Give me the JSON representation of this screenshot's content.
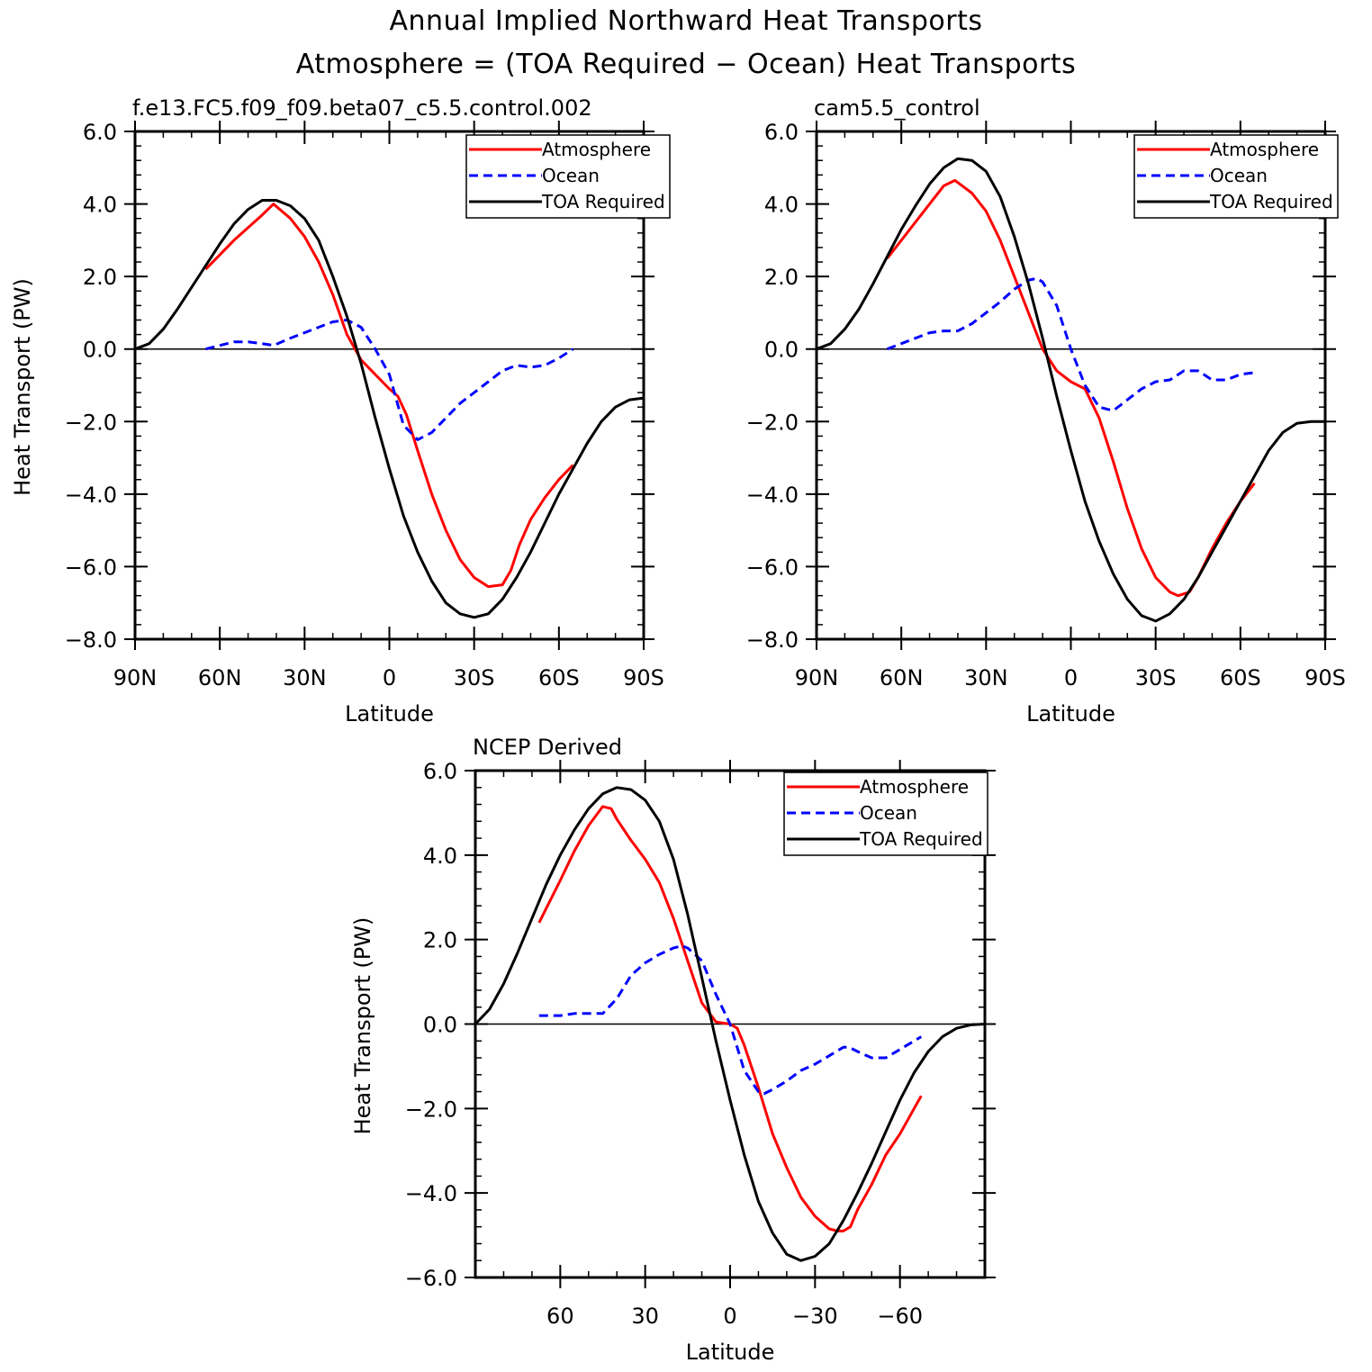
{
  "title": "Annual Implied Northward Heat Transports",
  "subtitle": "Atmosphere = (TOA Required − Ocean) Heat Transports",
  "colors": {
    "atmosphere": "#ff0000",
    "ocean": "#0000ff",
    "toa": "#000000"
  },
  "chart_data": [
    {
      "type": "line",
      "title": "f.e13.FC5.f09_f09.beta07_c5.5.control.002",
      "xlabel": "Latitude",
      "ylabel": "Heat Transport (PW)",
      "xlim": [
        90,
        -90
      ],
      "ylim": [
        -8,
        6
      ],
      "x_ticks": [
        90,
        60,
        30,
        0,
        -30,
        -60,
        -90
      ],
      "x_tick_labels": [
        "90N",
        "60N",
        "30N",
        "0",
        "30S",
        "60S",
        "90S"
      ],
      "y_ticks": [
        6,
        4,
        2,
        0,
        -2,
        -4,
        -6,
        -8
      ],
      "y_tick_labels": [
        "6.0",
        "4.0",
        "2.0",
        "0.0",
        "−2.0",
        "−4.0",
        "−6.0",
        "−8.0"
      ],
      "legend_position": "top-right",
      "grid": false,
      "series": [
        {
          "name": "Atmosphere",
          "style": "solid",
          "color": "#ff0000",
          "x": [
            65,
            55,
            45,
            41,
            35,
            30,
            25,
            20,
            15,
            10,
            5,
            0,
            -3,
            -6,
            -10,
            -15,
            -20,
            -25,
            -30,
            -35,
            -40,
            -43,
            -46,
            -50,
            -55,
            -60,
            -65
          ],
          "y": [
            2.2,
            3.0,
            3.7,
            4.0,
            3.6,
            3.1,
            2.4,
            1.5,
            0.4,
            -0.3,
            -0.7,
            -1.1,
            -1.3,
            -1.8,
            -2.8,
            -4.0,
            -5.0,
            -5.8,
            -6.3,
            -6.55,
            -6.5,
            -6.1,
            -5.4,
            -4.7,
            -4.1,
            -3.6,
            -3.2
          ]
        },
        {
          "name": "Ocean",
          "style": "dashed",
          "color": "#0000ff",
          "x": [
            65,
            60,
            55,
            50,
            45,
            41,
            35,
            30,
            25,
            20,
            15,
            10,
            5,
            0,
            -5,
            -10,
            -15,
            -20,
            -25,
            -30,
            -35,
            -40,
            -45,
            -50,
            -55,
            -60,
            -65
          ],
          "y": [
            0.0,
            0.1,
            0.2,
            0.2,
            0.15,
            0.1,
            0.3,
            0.45,
            0.6,
            0.75,
            0.8,
            0.6,
            0.0,
            -0.7,
            -2.1,
            -2.5,
            -2.3,
            -1.9,
            -1.5,
            -1.2,
            -0.9,
            -0.6,
            -0.45,
            -0.5,
            -0.45,
            -0.25,
            0.0
          ]
        },
        {
          "name": "TOA Required",
          "style": "solid",
          "color": "#000000",
          "x": [
            90,
            85,
            80,
            75,
            70,
            65,
            60,
            55,
            50,
            45,
            40,
            35,
            30,
            25,
            20,
            15,
            10,
            5,
            0,
            -5,
            -10,
            -15,
            -20,
            -25,
            -30,
            -35,
            -40,
            -45,
            -50,
            -55,
            -60,
            -65,
            -70,
            -75,
            -80,
            -85,
            -90
          ],
          "y": [
            0.0,
            0.15,
            0.55,
            1.1,
            1.7,
            2.3,
            2.9,
            3.45,
            3.85,
            4.1,
            4.1,
            3.95,
            3.6,
            3.0,
            2.0,
            0.9,
            -0.4,
            -1.9,
            -3.3,
            -4.6,
            -5.6,
            -6.4,
            -7.0,
            -7.3,
            -7.4,
            -7.3,
            -6.9,
            -6.3,
            -5.6,
            -4.8,
            -4.0,
            -3.3,
            -2.6,
            -2.0,
            -1.6,
            -1.4,
            -1.35
          ]
        }
      ]
    },
    {
      "type": "line",
      "title": "cam5.5_control",
      "xlabel": "Latitude",
      "ylabel": "",
      "xlim": [
        90,
        -90
      ],
      "ylim": [
        -8,
        6
      ],
      "x_ticks": [
        90,
        60,
        30,
        0,
        -30,
        -60,
        -90
      ],
      "x_tick_labels": [
        "90N",
        "60N",
        "30N",
        "0",
        "30S",
        "60S",
        "90S"
      ],
      "y_ticks": [
        6,
        4,
        2,
        0,
        -2,
        -4,
        -6,
        -8
      ],
      "y_tick_labels": [
        "6.0",
        "4.0",
        "2.0",
        "0.0",
        "−2.0",
        "−4.0",
        "−6.0",
        "−8.0"
      ],
      "legend_position": "top-right",
      "grid": false,
      "series": [
        {
          "name": "Atmosphere",
          "style": "solid",
          "color": "#ff0000",
          "x": [
            65,
            60,
            55,
            50,
            45,
            41,
            35,
            30,
            25,
            20,
            15,
            10,
            5,
            0,
            -5,
            -10,
            -15,
            -20,
            -25,
            -30,
            -35,
            -38,
            -42,
            -45,
            -50,
            -55,
            -60,
            -65
          ],
          "y": [
            2.5,
            3.0,
            3.5,
            4.0,
            4.5,
            4.65,
            4.3,
            3.8,
            3.0,
            2.0,
            1.0,
            0.0,
            -0.6,
            -0.9,
            -1.1,
            -1.9,
            -3.1,
            -4.4,
            -5.5,
            -6.3,
            -6.7,
            -6.8,
            -6.7,
            -6.3,
            -5.5,
            -4.8,
            -4.2,
            -3.7
          ]
        },
        {
          "name": "Ocean",
          "style": "dashed",
          "color": "#0000ff",
          "x": [
            65,
            60,
            55,
            50,
            45,
            40,
            35,
            30,
            25,
            20,
            15,
            12,
            10,
            5,
            0,
            -5,
            -10,
            -15,
            -20,
            -25,
            -30,
            -35,
            -40,
            -45,
            -50,
            -55,
            -60,
            -65
          ],
          "y": [
            0.0,
            0.15,
            0.3,
            0.45,
            0.5,
            0.5,
            0.7,
            1.0,
            1.3,
            1.65,
            1.9,
            1.95,
            1.85,
            1.2,
            0.0,
            -1.0,
            -1.6,
            -1.7,
            -1.4,
            -1.1,
            -0.9,
            -0.85,
            -0.6,
            -0.6,
            -0.85,
            -0.85,
            -0.7,
            -0.65
          ]
        },
        {
          "name": "TOA Required",
          "style": "solid",
          "color": "#000000",
          "x": [
            90,
            85,
            80,
            75,
            70,
            65,
            60,
            55,
            50,
            45,
            40,
            35,
            30,
            25,
            20,
            15,
            10,
            5,
            0,
            -5,
            -10,
            -15,
            -20,
            -25,
            -30,
            -35,
            -40,
            -45,
            -50,
            -55,
            -60,
            -65,
            -70,
            -75,
            -80,
            -85,
            -90
          ],
          "y": [
            0.0,
            0.15,
            0.55,
            1.1,
            1.8,
            2.55,
            3.3,
            3.95,
            4.55,
            5.0,
            5.25,
            5.2,
            4.9,
            4.2,
            3.1,
            1.8,
            0.3,
            -1.3,
            -2.8,
            -4.2,
            -5.3,
            -6.2,
            -6.9,
            -7.35,
            -7.5,
            -7.3,
            -6.9,
            -6.3,
            -5.6,
            -4.9,
            -4.2,
            -3.5,
            -2.8,
            -2.3,
            -2.05,
            -2.0,
            -2.0
          ]
        }
      ]
    },
    {
      "type": "line",
      "title": "NCEP Derived",
      "xlabel": "Latitude",
      "ylabel": "Heat Transport (PW)",
      "xlim": [
        90,
        -90
      ],
      "ylim": [
        -6,
        6
      ],
      "x_ticks": [
        60,
        30,
        0,
        -30,
        -60
      ],
      "x_tick_labels": [
        "60",
        "30",
        "0",
        "−30",
        "−60"
      ],
      "y_ticks": [
        6,
        4,
        2,
        0,
        -2,
        -4,
        -6
      ],
      "y_tick_labels": [
        "6.0",
        "4.0",
        "2.0",
        "0.0",
        "−2.0",
        "−4.0",
        "−6.0"
      ],
      "legend_position": "top-right",
      "grid": false,
      "series": [
        {
          "name": "Atmosphere",
          "style": "solid",
          "color": "#ff0000",
          "x": [
            67.5,
            60,
            55,
            50,
            45,
            42,
            40,
            35,
            30,
            25,
            20,
            15,
            10,
            5,
            0,
            -2.5,
            -5,
            -10,
            -15,
            -20,
            -25,
            -30,
            -35,
            -38,
            -40,
            -42.5,
            -45,
            -50,
            -55,
            -60,
            -65,
            -67.5
          ],
          "y": [
            2.4,
            3.4,
            4.1,
            4.7,
            5.15,
            5.1,
            4.85,
            4.35,
            3.9,
            3.35,
            2.5,
            1.5,
            0.5,
            0.05,
            0.0,
            -0.1,
            -0.5,
            -1.5,
            -2.6,
            -3.4,
            -4.1,
            -4.55,
            -4.85,
            -4.9,
            -4.9,
            -4.8,
            -4.4,
            -3.8,
            -3.1,
            -2.6,
            -2.0,
            -1.7
          ]
        },
        {
          "name": "Ocean",
          "style": "dashed",
          "color": "#0000ff",
          "x": [
            67.5,
            60,
            55,
            50,
            45,
            40,
            35,
            30,
            25,
            20,
            17,
            15,
            10,
            5,
            0,
            -5,
            -10,
            -12,
            -15,
            -20,
            -25,
            -30,
            -35,
            -40,
            -42,
            -45,
            -50,
            -55,
            -60,
            -65,
            -67.5
          ],
          "y": [
            0.2,
            0.2,
            0.25,
            0.25,
            0.25,
            0.6,
            1.15,
            1.45,
            1.65,
            1.8,
            1.85,
            1.8,
            1.5,
            0.7,
            0.0,
            -1.1,
            -1.6,
            -1.65,
            -1.55,
            -1.35,
            -1.1,
            -0.95,
            -0.75,
            -0.55,
            -0.55,
            -0.65,
            -0.8,
            -0.8,
            -0.6,
            -0.4,
            -0.3
          ]
        },
        {
          "name": "TOA Required",
          "style": "solid",
          "color": "#000000",
          "x": [
            90,
            85,
            80,
            75,
            70,
            65,
            60,
            55,
            50,
            45,
            40,
            35,
            30,
            25,
            20,
            15,
            10,
            5,
            0,
            -5,
            -10,
            -15,
            -20,
            -25,
            -30,
            -35,
            -40,
            -45,
            -50,
            -55,
            -60,
            -65,
            -70,
            -75,
            -80,
            -85,
            -90
          ],
          "y": [
            0.0,
            0.35,
            0.95,
            1.7,
            2.5,
            3.3,
            4.0,
            4.6,
            5.1,
            5.45,
            5.6,
            5.55,
            5.3,
            4.8,
            3.9,
            2.6,
            1.1,
            -0.4,
            -1.8,
            -3.1,
            -4.2,
            -4.95,
            -5.45,
            -5.6,
            -5.5,
            -5.2,
            -4.65,
            -4.0,
            -3.3,
            -2.55,
            -1.8,
            -1.15,
            -0.65,
            -0.3,
            -0.1,
            -0.02,
            0.0
          ]
        }
      ]
    }
  ]
}
